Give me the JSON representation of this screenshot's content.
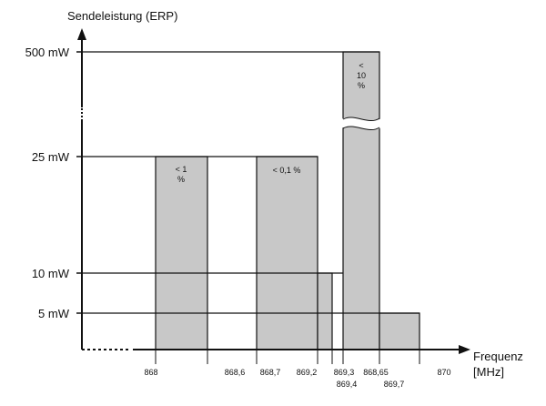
{
  "chart_data": {
    "type": "bar",
    "ylabel": "Sendeleistung (ERP)",
    "xlabel": "Frequenz\n[MHz]",
    "xlabel_lines": [
      "Frequenz",
      "[MHz]"
    ],
    "y_levels": [
      {
        "label": "5 mW",
        "value_mw": 5
      },
      {
        "label": "10 mW",
        "value_mw": 10
      },
      {
        "label": "25 mW",
        "value_mw": 25
      },
      {
        "label": "500 mW",
        "value_mw": 500
      }
    ],
    "x_tick_labels": [
      "868",
      "868,6",
      "868,7",
      "869,2",
      "869,3",
      "868,65",
      "870",
      "869,4",
      "869,7"
    ],
    "bands": [
      {
        "from": "868",
        "to": "868,6",
        "power_mw": 25,
        "label": "< 1\n%",
        "label_lines": [
          "< 1",
          "%"
        ]
      },
      {
        "from": "868,7",
        "to": "869,2",
        "power_mw": 25,
        "label": "< 0,1 %",
        "label_lines": [
          "< 0,1 %"
        ]
      },
      {
        "from": "869,2",
        "to": "869,3",
        "power_mw": 10,
        "label": "",
        "label_lines": []
      },
      {
        "from": "869,4",
        "to": "868,65",
        "power_mw": 500,
        "label": "<\n10\n%",
        "label_lines": [
          "<",
          "10",
          "%"
        ]
      },
      {
        "from": "868,65",
        "to": "869,7",
        "power_mw": 5,
        "label": "",
        "label_lines": []
      }
    ],
    "y_axis_break": true,
    "x_axis_break": true,
    "grid": false,
    "colors": {
      "bar": "#c8c8c8",
      "line": "#111111"
    }
  }
}
